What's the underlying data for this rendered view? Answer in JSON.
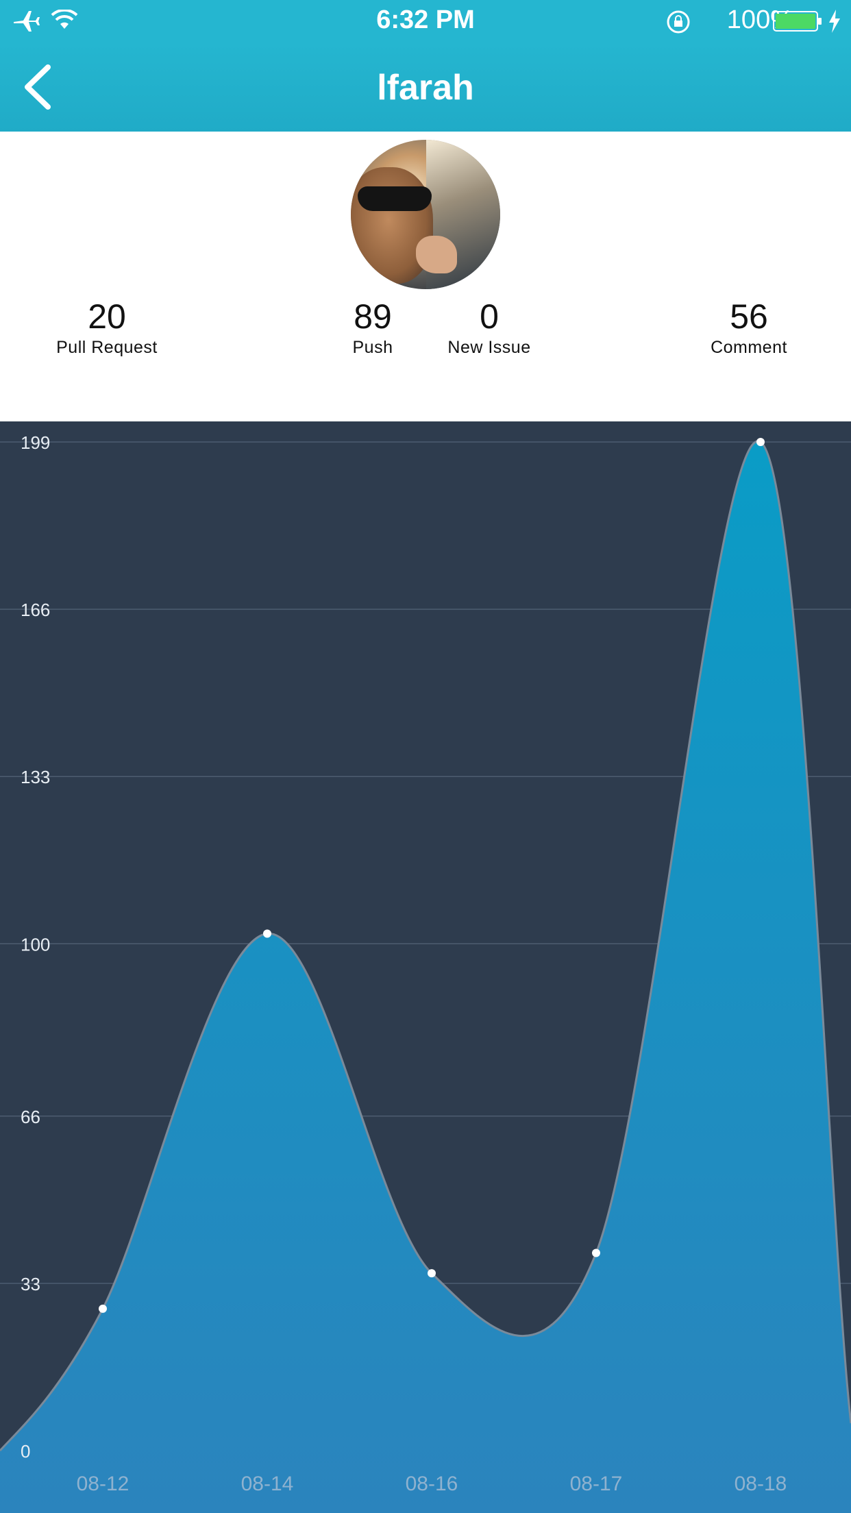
{
  "status_bar": {
    "time": "6:32 PM",
    "battery_percent": "100%",
    "icons": [
      "airplane-icon",
      "wifi-icon",
      "rotation-lock-icon",
      "battery-icon",
      "charging-icon"
    ]
  },
  "nav": {
    "title": "lfarah",
    "back_icon": "chevron-left-icon"
  },
  "profile": {
    "avatar": "avatar",
    "stats": [
      {
        "value": "20",
        "label": "Pull Request"
      },
      {
        "value": "89",
        "label": "Push"
      },
      {
        "value": "0",
        "label": "New Issue"
      },
      {
        "value": "56",
        "label": "Comment"
      }
    ]
  },
  "colors": {
    "accent": "#25b6d0",
    "chart_bg": "#2e3c4e",
    "area_top": "#0a9cc6",
    "area_bottom": "#2b84bd",
    "line": "#7a8a9a"
  },
  "chart_data": {
    "type": "area",
    "categories": [
      "08-12",
      "08-14",
      "08-16",
      "08-17",
      "08-18"
    ],
    "series": [
      {
        "values": [
          28,
          102,
          35,
          39,
          199
        ]
      }
    ],
    "y_ticks": [
      0,
      33,
      66,
      100,
      133,
      166,
      199
    ],
    "ylim": [
      0,
      199
    ],
    "grid": true,
    "smooth": true
  }
}
